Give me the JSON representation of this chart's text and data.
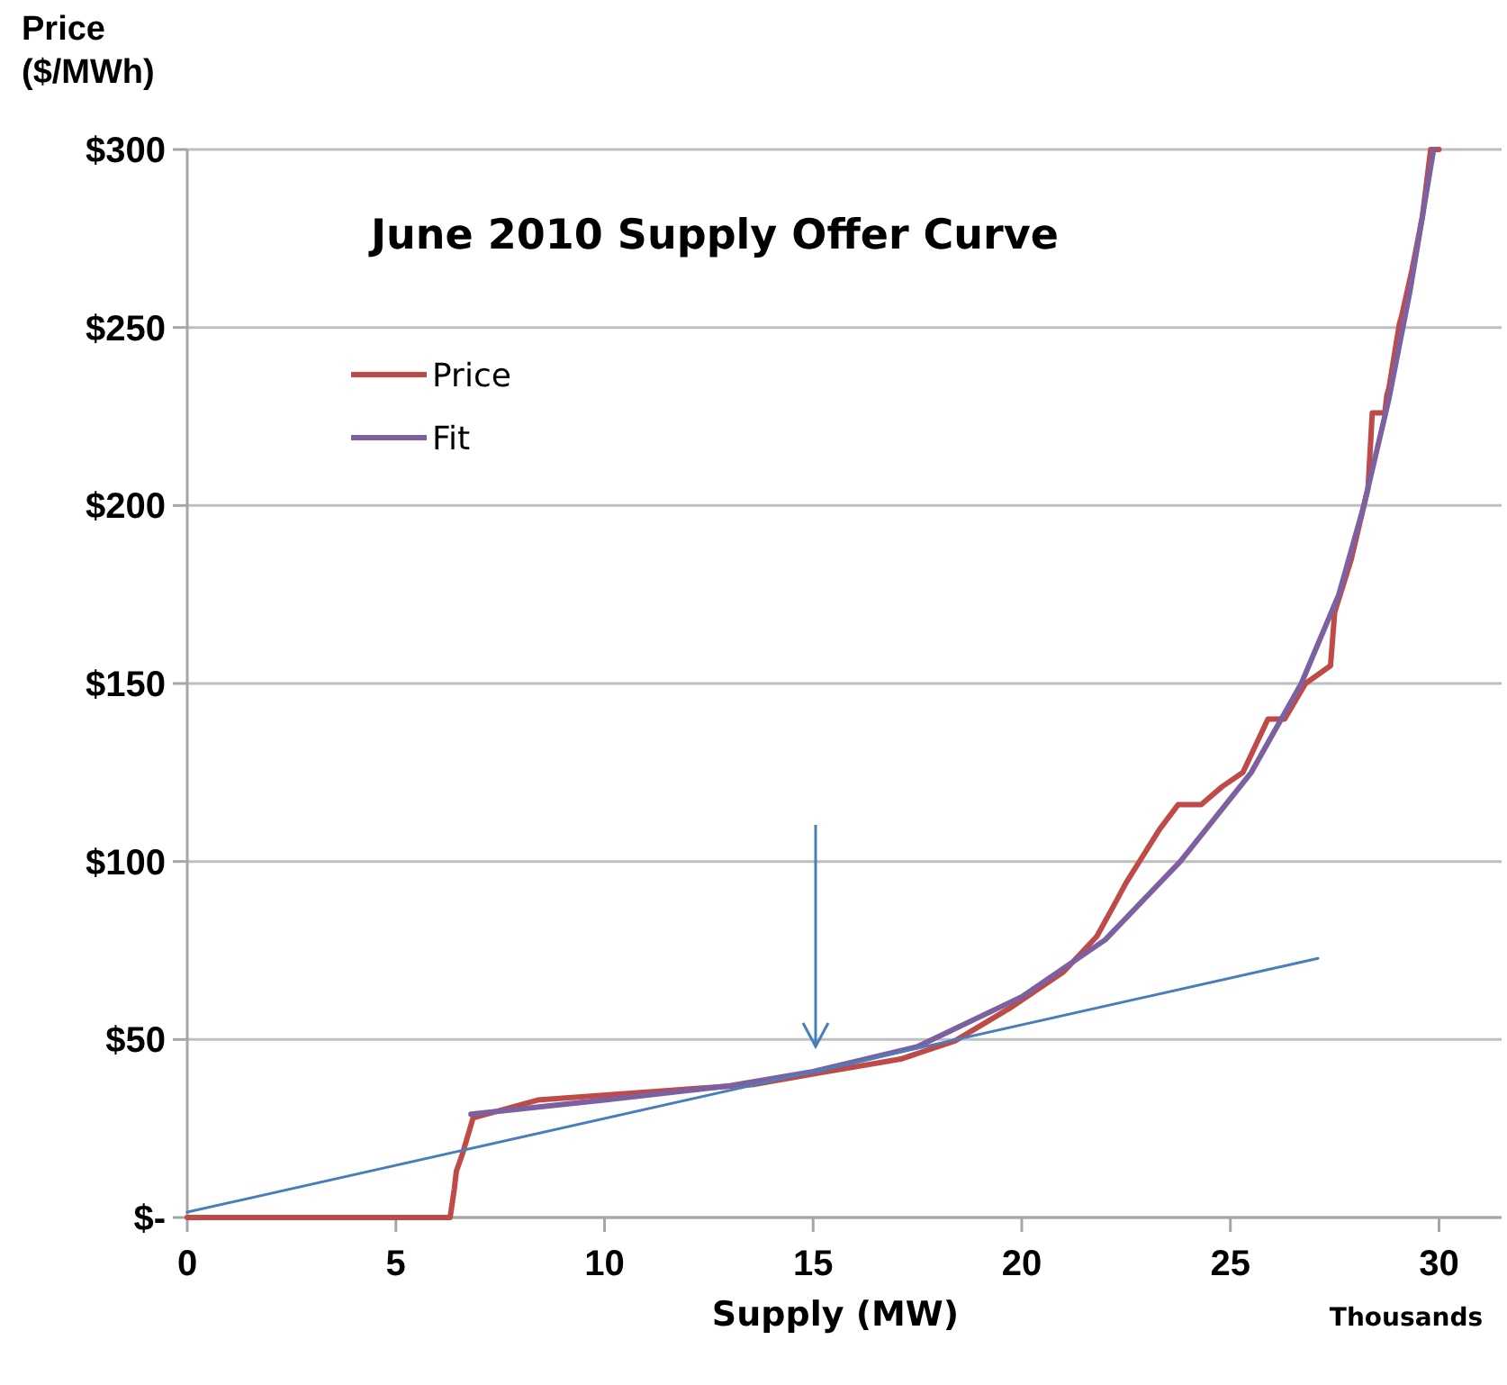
{
  "chart_data": {
    "type": "line",
    "title": "June 2010 Supply Offer Curve",
    "xlabel": "Supply (MW)",
    "ylabel": "Price ($/MWh)",
    "annotations": [
      "Thousands"
    ],
    "xlim": [
      0,
      31.5
    ],
    "xticks": [
      0,
      5,
      10,
      15,
      20,
      25,
      30
    ],
    "ylim": [
      0,
      300
    ],
    "yticks": [
      {
        "value": 0,
        "label": "$-"
      },
      {
        "value": 50,
        "label": "$50"
      },
      {
        "value": 100,
        "label": "$100"
      },
      {
        "value": 150,
        "label": "$150"
      },
      {
        "value": 200,
        "label": "$200"
      },
      {
        "value": 250,
        "label": "$250"
      },
      {
        "value": 300,
        "label": "$300"
      }
    ],
    "grid": "y",
    "legend": "top left",
    "marker": "none",
    "line_style": "solid",
    "series": [
      {
        "name": "Price",
        "color": "#be4b48",
        "x": [
          0,
          6.3,
          6.4,
          6.45,
          6.6,
          6.85,
          8.4,
          11.9,
          13.6,
          15.1,
          17.1,
          18.4,
          19.7,
          21,
          21.8,
          22.2,
          22.5,
          23.3,
          23.75,
          24.3,
          24.8,
          25.3,
          25.9,
          26.3,
          26.8,
          27.4,
          27.5,
          27.9,
          28.1,
          28.3,
          28.4,
          28.7,
          28.75,
          28.8,
          29.05,
          29.1,
          29.35,
          29.6,
          29.8,
          30
        ],
        "values": [
          0,
          0,
          8,
          13,
          18,
          28,
          33,
          36,
          37.4,
          40.5,
          44.5,
          49.6,
          58.7,
          69,
          79,
          87.5,
          94,
          109,
          116,
          116,
          121,
          125,
          140,
          140,
          150,
          155,
          170,
          185,
          195,
          205,
          226,
          226,
          231,
          233,
          251,
          253,
          266,
          281,
          300,
          300
        ]
      },
      {
        "name": "Fit",
        "color": "#7d60a0",
        "x": [
          6.8,
          10,
          13,
          15,
          17.5,
          20,
          22,
          23.8,
          25.5,
          26.7,
          27.6,
          28.2,
          28.8,
          29.3,
          29.87
        ],
        "values": [
          29,
          33,
          37,
          41,
          48,
          62,
          78,
          100,
          125,
          150,
          175,
          200,
          230,
          260,
          300
        ]
      },
      {
        "color": "#4a7ebb",
        "x": [
          0,
          27.1
        ],
        "values": [
          1.5,
          72.8
        ]
      }
    ]
  }
}
